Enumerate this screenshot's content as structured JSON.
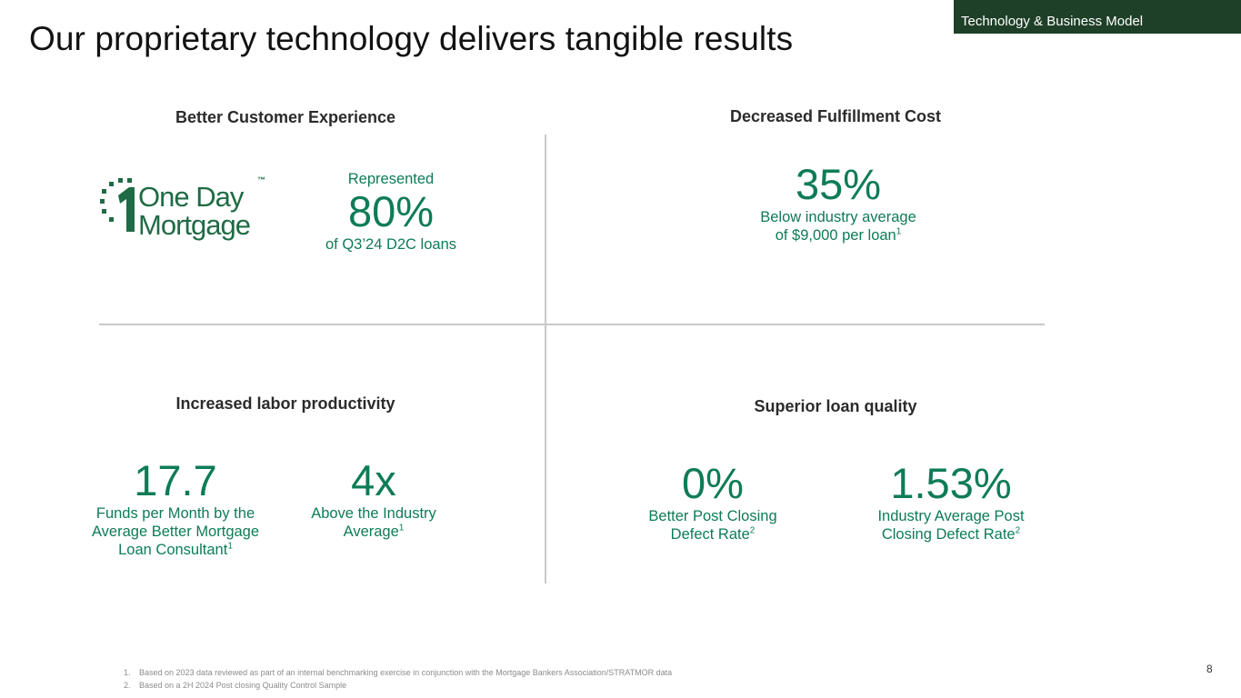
{
  "header": {
    "section_tag": "Technology & Business Model",
    "title": "Our proprietary technology delivers tangible results"
  },
  "quadrants": {
    "customer_experience": {
      "heading": "Better Customer Experience",
      "logo": {
        "icon": "one-day-mortgage-logo-icon",
        "line1": "One Day",
        "line2": "Mortgage",
        "trademark": "™"
      },
      "pre_label": "Represented",
      "value": "80%",
      "label": "of Q3’24 D2C loans"
    },
    "fulfillment_cost": {
      "heading": "Decreased Fulfillment Cost",
      "value": "35%",
      "label_line1": "Below industry average",
      "label_line2": "of $9,000 per loan",
      "footnote_ref": "1"
    },
    "labor_productivity": {
      "heading": "Increased labor productivity",
      "stats": [
        {
          "value": "17.7",
          "lines": [
            "Funds per Month by the",
            "Average Better Mortgage",
            "Loan Consultant"
          ],
          "footnote_ref": "1"
        },
        {
          "value": "4x",
          "lines": [
            "Above the Industry",
            "Average"
          ],
          "footnote_ref": "1"
        }
      ]
    },
    "loan_quality": {
      "heading": "Superior loan quality",
      "stats": [
        {
          "value": "0%",
          "lines": [
            "Better Post Closing",
            "Defect Rate"
          ],
          "footnote_ref": "2"
        },
        {
          "value": "1.53%",
          "lines": [
            "Industry Average Post",
            "Closing Defect Rate"
          ],
          "footnote_ref": "2"
        }
      ]
    }
  },
  "footnotes": [
    {
      "num": "1.",
      "text": "Based on 2023 data reviewed as part of an internal benchmarking exercise in conjunction with the Mortgage Bankers Association/STRATMOR data"
    },
    {
      "num": "2.",
      "text": "Based on a 2H 2024 Post closing Quality Control Sample"
    }
  ],
  "page_number": "8",
  "colors": {
    "accent_green": "#0e7c55",
    "tag_background": "#1f4028",
    "divider": "#c9c9c9"
  }
}
